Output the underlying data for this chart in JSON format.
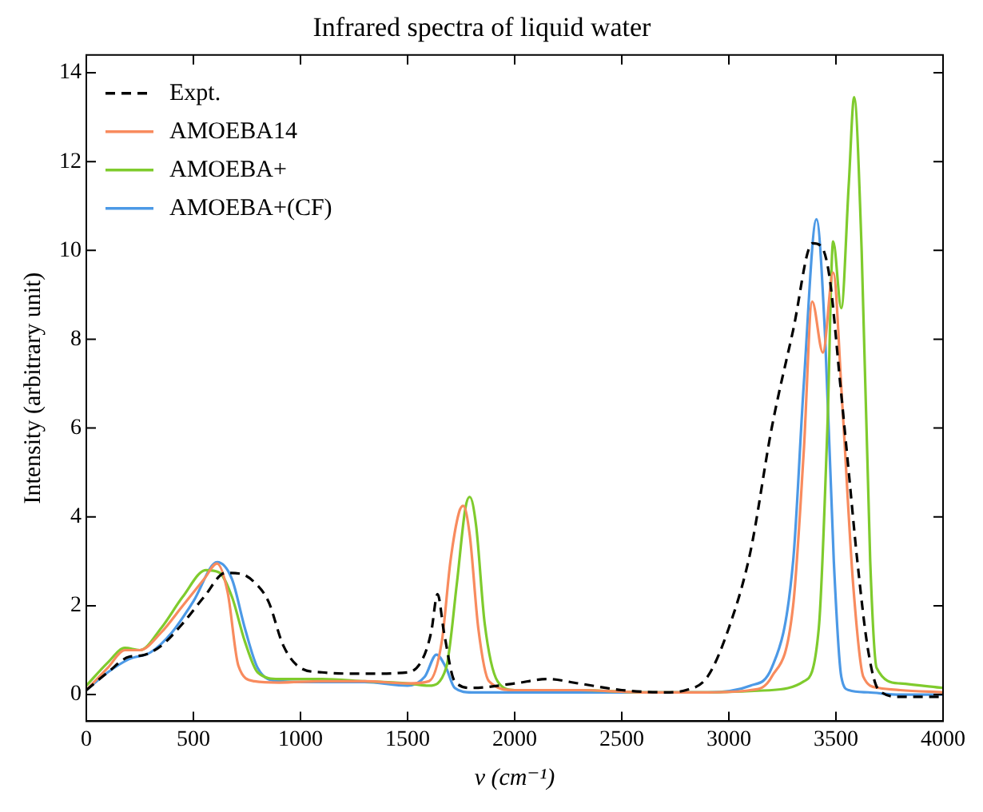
{
  "chart_data": {
    "type": "line",
    "title": "Infrared spectra of liquid water",
    "xlabel": "ν (cm⁻¹)",
    "ylabel": "Intensity (arbitrary unit)",
    "xlim": [
      0,
      4000
    ],
    "xticks": [
      0,
      500,
      1000,
      1500,
      2000,
      2500,
      3000,
      3500,
      4000
    ],
    "ylim": [
      -0.6,
      14.4
    ],
    "yticks": [
      0,
      2,
      4,
      6,
      8,
      10,
      12,
      14
    ],
    "grid": false,
    "legend": "top left",
    "marker": "none",
    "series": [
      {
        "name": "Expt.",
        "color": "#000000",
        "line_style": "dashed",
        "x": [
          0,
          100,
          200,
          260,
          350,
          450,
          550,
          650,
          720,
          780,
          850,
          920,
          1000,
          1100,
          1300,
          1500,
          1570,
          1610,
          1640,
          1670,
          1720,
          1800,
          2000,
          2150,
          2300,
          2500,
          2700,
          2800,
          2900,
          3000,
          3100,
          3200,
          3300,
          3390,
          3430,
          3470,
          3520,
          3560,
          3600,
          3650,
          3700,
          3800,
          4000
        ],
        "values": [
          0.1,
          0.5,
          0.85,
          0.88,
          1.1,
          1.6,
          2.2,
          2.74,
          2.72,
          2.55,
          2.1,
          1.1,
          0.6,
          0.5,
          0.47,
          0.5,
          0.8,
          1.4,
          2.26,
          1.4,
          0.3,
          0.15,
          0.25,
          0.35,
          0.25,
          0.1,
          0.05,
          0.1,
          0.4,
          1.5,
          3.2,
          6.0,
          8.2,
          10.16,
          10.1,
          9.4,
          7.0,
          5.0,
          3.0,
          1.0,
          0.1,
          -0.05,
          -0.05
        ]
      },
      {
        "name": "AMOEBA14",
        "color": "#f88b5e",
        "line_style": "solid",
        "x": [
          0,
          100,
          180,
          250,
          350,
          450,
          550,
          610,
          660,
          710,
          785,
          900,
          1100,
          1300,
          1500,
          1600,
          1660,
          1700,
          1740,
          1760,
          1790,
          1830,
          1880,
          2000,
          2300,
          2600,
          2900,
          3100,
          3200,
          3300,
          3350,
          3389,
          3439,
          3487,
          3530,
          3580,
          3628,
          3700,
          3800,
          4000
        ],
        "values": [
          0.1,
          0.6,
          1.0,
          1.0,
          1.4,
          2.0,
          2.6,
          2.95,
          2.3,
          0.65,
          0.3,
          0.27,
          0.3,
          0.3,
          0.25,
          0.3,
          1.2,
          3.0,
          4.1,
          4.25,
          3.6,
          1.5,
          0.3,
          0.1,
          0.1,
          0.05,
          0.05,
          0.1,
          0.4,
          2.0,
          5.5,
          8.85,
          7.7,
          9.5,
          6.5,
          2.5,
          0.4,
          0.15,
          0.1,
          0.05
        ]
      },
      {
        "name": "AMOEBA+",
        "color": "#7fcb2d",
        "line_style": "solid",
        "x": [
          0,
          100,
          180,
          250,
          350,
          450,
          558,
          620,
          680,
          740,
          800,
          900,
          1100,
          1300,
          1500,
          1600,
          1680,
          1730,
          1770,
          1790,
          1820,
          1860,
          1920,
          2000,
          2300,
          2600,
          2900,
          3200,
          3351,
          3420,
          3460,
          3487,
          3525,
          3560,
          3585,
          3620,
          3660,
          3690,
          3800,
          4000
        ],
        "values": [
          0.2,
          0.72,
          1.05,
          1.0,
          1.5,
          2.2,
          2.8,
          2.75,
          2.2,
          1.2,
          0.5,
          0.35,
          0.35,
          0.3,
          0.25,
          0.2,
          0.6,
          2.5,
          4.2,
          4.45,
          3.8,
          1.6,
          0.3,
          0.1,
          0.1,
          0.05,
          0.05,
          0.1,
          0.3,
          1.5,
          6.0,
          10.2,
          8.7,
          11.5,
          13.45,
          10.0,
          3.0,
          0.6,
          0.25,
          0.15
        ]
      },
      {
        "name": "AMOEBA+(CF)",
        "color": "#4c99e6",
        "line_style": "solid",
        "x": [
          0,
          100,
          200,
          300,
          400,
          500,
          611,
          680,
          740,
          800,
          900,
          1100,
          1300,
          1500,
          1580,
          1635,
          1680,
          1720,
          1800,
          2000,
          2300,
          2600,
          2900,
          3100,
          3200,
          3300,
          3350,
          3409,
          3450,
          3490,
          3525,
          3560,
          3650,
          3800,
          4000
        ],
        "values": [
          0.1,
          0.5,
          0.8,
          0.95,
          1.4,
          2.1,
          2.98,
          2.6,
          1.5,
          0.6,
          0.3,
          0.28,
          0.28,
          0.2,
          0.4,
          0.9,
          0.6,
          0.15,
          0.05,
          0.05,
          0.05,
          0.05,
          0.05,
          0.2,
          0.6,
          3.0,
          7.0,
          10.7,
          8.0,
          3.0,
          0.4,
          0.1,
          0.05,
          0.0,
          0.0
        ]
      }
    ]
  }
}
